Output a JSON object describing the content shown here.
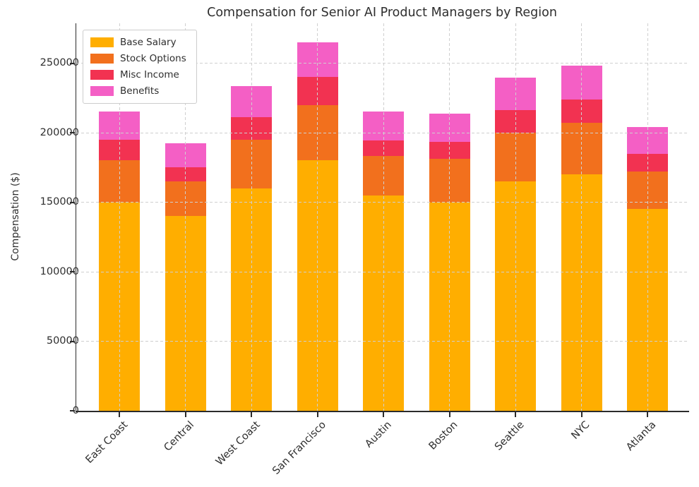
{
  "chart_data": {
    "type": "bar",
    "stacked": true,
    "title": "Compensation for Senior AI Product Managers by Region",
    "ylabel": "Compensation ($)",
    "xlabel": "",
    "categories": [
      "East Coast",
      "Central",
      "West Coast",
      "San Francisco",
      "Austin",
      "Boston",
      "Seattle",
      "NYC",
      "Atlanta"
    ],
    "series": [
      {
        "name": "Base Salary",
        "color": "#ffae00",
        "values": [
          150000,
          140000,
          160000,
          180000,
          155000,
          150000,
          165000,
          170000,
          145000
        ]
      },
      {
        "name": "Stock Options",
        "color": "#f2701d",
        "values": [
          30000,
          25000,
          35000,
          40000,
          28500,
          31000,
          35000,
          37000,
          27000
        ]
      },
      {
        "name": "Misc Income",
        "color": "#f23251",
        "values": [
          15000,
          10000,
          16000,
          20000,
          11000,
          12500,
          16500,
          17000,
          13000
        ]
      },
      {
        "name": "Benefits",
        "color": "#f45fc5",
        "values": [
          20000,
          17500,
          22500,
          25000,
          21000,
          20000,
          23000,
          24000,
          19000
        ]
      }
    ],
    "ylim": [
      0,
      278680
    ],
    "yticks": [
      0,
      50000,
      100000,
      150000,
      200000,
      250000
    ],
    "ytick_labels": [
      "0",
      "50000",
      "100000",
      "150000",
      "200000",
      "250000"
    ],
    "grid": true,
    "grid_style": "dashed",
    "grid_over_bars": true,
    "legend_position": "upper left"
  },
  "colors": {
    "axis": "#2b2b2b",
    "grid": "#cfcfcf",
    "text": "#2e2e2e",
    "background": "#ffffff"
  }
}
